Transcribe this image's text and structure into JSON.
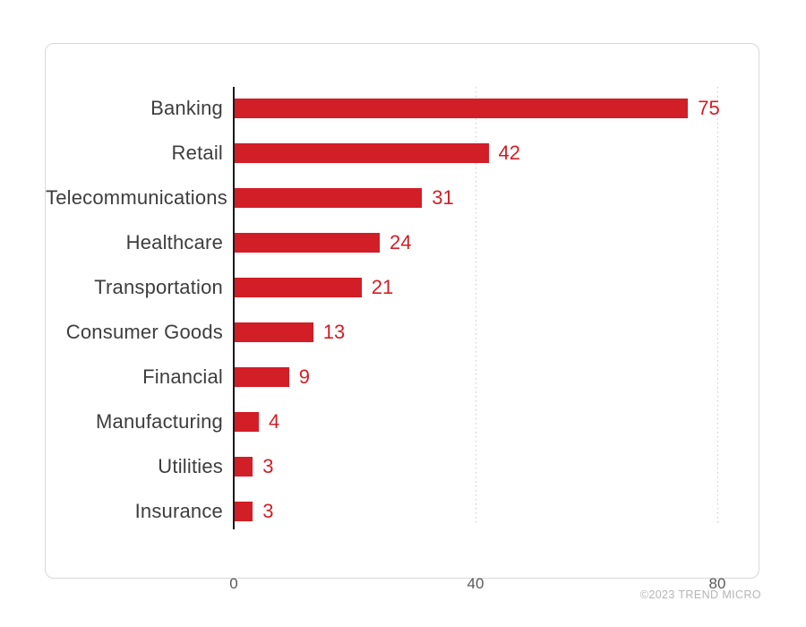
{
  "footer": {
    "credit": "©2023 TREND MICRO"
  },
  "colors": {
    "bar": "#d21e26",
    "value_label": "#d21e26",
    "category_label": "#3d3d3d",
    "axis": "#1a1a1a",
    "gridline": "#c9c9c9",
    "tick_label": "#5a5a5a",
    "card_border": "#d8d8d8",
    "background": "#ffffff"
  },
  "chart_data": {
    "type": "bar",
    "orientation": "horizontal",
    "title": "",
    "xlabel": "",
    "ylabel": "",
    "categories": [
      "Banking",
      "Retail",
      "Telecommunications",
      "Healthcare",
      "Transportation",
      "Consumer Goods",
      "Financial",
      "Manufacturing",
      "Utilities",
      "Insurance"
    ],
    "values": [
      75,
      42,
      31,
      24,
      21,
      13,
      9,
      4,
      3,
      3
    ],
    "value_labels": [
      "75",
      "42",
      "31",
      "24",
      "21",
      "13",
      "9",
      "4",
      "3",
      "3"
    ],
    "xlim": [
      0,
      80
    ],
    "x_ticks": [
      0,
      40,
      80
    ],
    "x_tick_labels": [
      "0",
      "40",
      "80"
    ],
    "gridlines_at": [
      40,
      80
    ],
    "grid": "dotted-vertical",
    "legend": "none"
  }
}
